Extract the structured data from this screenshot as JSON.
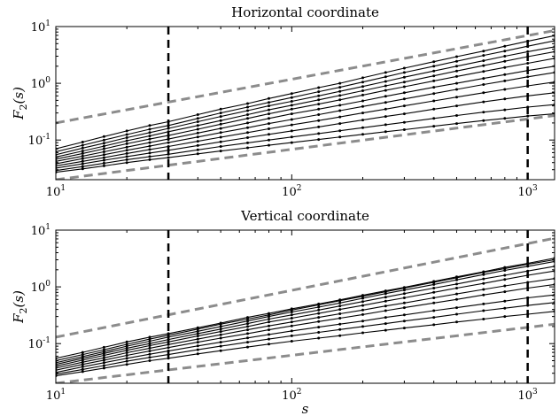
{
  "chart_data": [
    {
      "type": "line",
      "title": "Horizontal coordinate",
      "xlabel": "",
      "ylabel": "F2(s)",
      "xscale": "log",
      "yscale": "log",
      "xlim": [
        10,
        1300
      ],
      "ylim": [
        0.02,
        10
      ],
      "xticks": [
        "10^1",
        "10^2",
        "10^3"
      ],
      "yticks": [
        "10^-1",
        "10^0",
        "10^1"
      ],
      "vlines": [
        30,
        1000
      ],
      "reference_lines": [
        {
          "style": "gray-dashed",
          "x": [
            10,
            1300
          ],
          "y": [
            0.2,
            8.5
          ]
        },
        {
          "style": "gray-dashed",
          "x": [
            10,
            1300
          ],
          "y": [
            0.02,
            0.27
          ]
        }
      ],
      "series_x": [
        10,
        13,
        16,
        20,
        25,
        30,
        40,
        50,
        65,
        80,
        100,
        130,
        160,
        200,
        250,
        300,
        400,
        500,
        650,
        800,
        1000,
        1300
      ],
      "series": [
        {
          "values": [
            0.07,
            0.092,
            0.115,
            0.145,
            0.18,
            0.21,
            0.28,
            0.35,
            0.44,
            0.54,
            0.66,
            0.84,
            1.0,
            1.25,
            1.55,
            1.85,
            2.4,
            2.95,
            3.7,
            4.5,
            5.5,
            6.9
          ]
        },
        {
          "values": [
            0.062,
            0.081,
            0.1,
            0.125,
            0.155,
            0.18,
            0.24,
            0.3,
            0.38,
            0.46,
            0.56,
            0.71,
            0.85,
            1.05,
            1.3,
            1.55,
            2.0,
            2.45,
            3.1,
            3.7,
            4.5,
            5.6
          ]
        },
        {
          "values": [
            0.055,
            0.072,
            0.088,
            0.11,
            0.135,
            0.16,
            0.21,
            0.26,
            0.33,
            0.4,
            0.48,
            0.6,
            0.72,
            0.88,
            1.08,
            1.28,
            1.65,
            2.0,
            2.5,
            3.0,
            3.6,
            4.4
          ]
        },
        {
          "values": [
            0.05,
            0.064,
            0.078,
            0.097,
            0.118,
            0.14,
            0.18,
            0.22,
            0.28,
            0.34,
            0.41,
            0.51,
            0.61,
            0.74,
            0.9,
            1.05,
            1.35,
            1.65,
            2.05,
            2.45,
            2.95,
            3.6
          ]
        },
        {
          "values": [
            0.046,
            0.058,
            0.07,
            0.086,
            0.104,
            0.12,
            0.155,
            0.19,
            0.24,
            0.29,
            0.35,
            0.43,
            0.51,
            0.62,
            0.75,
            0.87,
            1.1,
            1.32,
            1.62,
            1.9,
            2.25,
            2.75
          ]
        },
        {
          "values": [
            0.042,
            0.052,
            0.062,
            0.075,
            0.09,
            0.104,
            0.133,
            0.16,
            0.2,
            0.24,
            0.29,
            0.35,
            0.41,
            0.49,
            0.59,
            0.68,
            0.85,
            1.0,
            1.22,
            1.42,
            1.68,
            2.0
          ]
        },
        {
          "values": [
            0.038,
            0.047,
            0.055,
            0.066,
            0.078,
            0.09,
            0.113,
            0.135,
            0.165,
            0.195,
            0.23,
            0.28,
            0.33,
            0.39,
            0.46,
            0.53,
            0.66,
            0.78,
            0.95,
            1.1,
            1.3,
            1.55
          ]
        },
        {
          "values": [
            0.035,
            0.042,
            0.049,
            0.058,
            0.068,
            0.077,
            0.095,
            0.112,
            0.135,
            0.158,
            0.185,
            0.22,
            0.255,
            0.3,
            0.35,
            0.4,
            0.49,
            0.57,
            0.68,
            0.78,
            0.9,
            1.05
          ]
        },
        {
          "values": [
            0.032,
            0.038,
            0.044,
            0.051,
            0.059,
            0.066,
            0.08,
            0.093,
            0.11,
            0.126,
            0.145,
            0.17,
            0.195,
            0.225,
            0.26,
            0.29,
            0.35,
            0.4,
            0.47,
            0.53,
            0.6,
            0.68
          ]
        },
        {
          "values": [
            0.029,
            0.034,
            0.039,
            0.045,
            0.051,
            0.056,
            0.067,
            0.077,
            0.089,
            0.1,
            0.113,
            0.13,
            0.146,
            0.165,
            0.186,
            0.205,
            0.24,
            0.27,
            0.31,
            0.34,
            0.38,
            0.42
          ]
        },
        {
          "values": [
            0.027,
            0.031,
            0.035,
            0.04,
            0.045,
            0.049,
            0.057,
            0.064,
            0.073,
            0.081,
            0.09,
            0.102,
            0.113,
            0.126,
            0.14,
            0.152,
            0.175,
            0.195,
            0.22,
            0.24,
            0.265,
            0.29
          ]
        }
      ]
    },
    {
      "type": "line",
      "title": "Vertical coordinate",
      "xlabel": "s",
      "ylabel": "F2(s)",
      "xscale": "log",
      "yscale": "log",
      "xlim": [
        10,
        1300
      ],
      "ylim": [
        0.02,
        10
      ],
      "xticks": [
        "10^1",
        "10^2",
        "10^3"
      ],
      "yticks": [
        "10^-1",
        "10^0",
        "10^1"
      ],
      "vlines": [
        30,
        1000
      ],
      "reference_lines": [
        {
          "style": "gray-dashed",
          "x": [
            10,
            1300
          ],
          "y": [
            0.13,
            7.2
          ]
        },
        {
          "style": "gray-dashed",
          "x": [
            10,
            1300
          ],
          "y": [
            0.02,
            0.22
          ]
        }
      ],
      "series_x": [
        10,
        13,
        16,
        20,
        25,
        30,
        40,
        50,
        65,
        80,
        100,
        130,
        160,
        200,
        250,
        300,
        400,
        500,
        650,
        800,
        1000,
        1300
      ],
      "series": [
        {
          "values": [
            0.055,
            0.07,
            0.086,
            0.107,
            0.13,
            0.15,
            0.19,
            0.23,
            0.29,
            0.34,
            0.41,
            0.5,
            0.59,
            0.71,
            0.85,
            0.98,
            1.25,
            1.5,
            1.85,
            2.2,
            2.6,
            3.2
          ]
        },
        {
          "values": [
            0.05,
            0.064,
            0.078,
            0.097,
            0.12,
            0.14,
            0.18,
            0.22,
            0.27,
            0.32,
            0.39,
            0.48,
            0.57,
            0.68,
            0.82,
            0.95,
            1.2,
            1.45,
            1.8,
            2.1,
            2.5,
            3.0
          ]
        },
        {
          "values": [
            0.046,
            0.059,
            0.072,
            0.09,
            0.11,
            0.13,
            0.165,
            0.2,
            0.25,
            0.3,
            0.36,
            0.44,
            0.52,
            0.63,
            0.76,
            0.88,
            1.1,
            1.33,
            1.65,
            1.95,
            2.3,
            2.8
          ]
        },
        {
          "values": [
            0.043,
            0.055,
            0.067,
            0.083,
            0.1,
            0.118,
            0.15,
            0.18,
            0.225,
            0.27,
            0.32,
            0.39,
            0.46,
            0.55,
            0.66,
            0.76,
            0.95,
            1.12,
            1.38,
            1.6,
            1.9,
            2.3
          ]
        },
        {
          "values": [
            0.04,
            0.051,
            0.062,
            0.076,
            0.092,
            0.107,
            0.136,
            0.163,
            0.2,
            0.24,
            0.28,
            0.34,
            0.4,
            0.47,
            0.56,
            0.64,
            0.8,
            0.95,
            1.15,
            1.35,
            1.6,
            1.9
          ]
        },
        {
          "values": [
            0.037,
            0.047,
            0.056,
            0.069,
            0.083,
            0.096,
            0.12,
            0.143,
            0.175,
            0.205,
            0.24,
            0.29,
            0.335,
            0.39,
            0.46,
            0.52,
            0.64,
            0.75,
            0.9,
            1.04,
            1.2,
            1.4
          ]
        },
        {
          "values": [
            0.034,
            0.043,
            0.051,
            0.062,
            0.074,
            0.085,
            0.106,
            0.125,
            0.15,
            0.175,
            0.205,
            0.245,
            0.28,
            0.325,
            0.38,
            0.43,
            0.52,
            0.6,
            0.72,
            0.82,
            0.95,
            1.1
          ]
        },
        {
          "values": [
            0.031,
            0.039,
            0.046,
            0.055,
            0.065,
            0.074,
            0.091,
            0.106,
            0.126,
            0.145,
            0.167,
            0.195,
            0.22,
            0.25,
            0.29,
            0.32,
            0.38,
            0.43,
            0.5,
            0.56,
            0.64,
            0.72
          ]
        },
        {
          "values": [
            0.029,
            0.035,
            0.041,
            0.049,
            0.057,
            0.064,
            0.078,
            0.09,
            0.106,
            0.12,
            0.137,
            0.158,
            0.177,
            0.2,
            0.225,
            0.25,
            0.29,
            0.33,
            0.38,
            0.42,
            0.47,
            0.53
          ]
        },
        {
          "values": [
            0.027,
            0.032,
            0.037,
            0.043,
            0.05,
            0.055,
            0.066,
            0.075,
            0.087,
            0.098,
            0.11,
            0.125,
            0.138,
            0.155,
            0.172,
            0.188,
            0.215,
            0.24,
            0.27,
            0.3,
            0.33,
            0.37
          ]
        }
      ]
    }
  ]
}
